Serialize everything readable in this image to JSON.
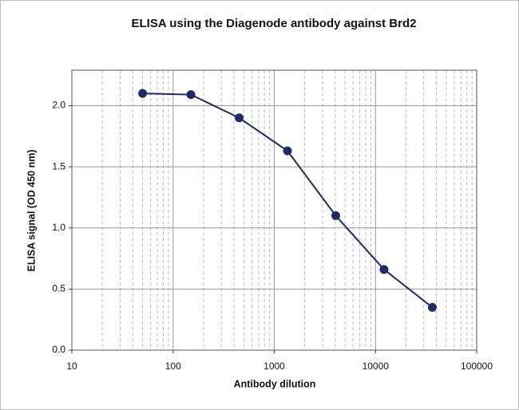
{
  "chart_data": {
    "type": "line",
    "title": "ELISA using the Diagenode antibody against Brd2",
    "x_label": "Antibody dilution",
    "y_label": "ELISA signal (OD 450 nm)",
    "x": [
      50,
      150,
      450,
      1350,
      4050,
      12150,
      36450
    ],
    "series": [
      {
        "color": "#1f2a6b",
        "values": [
          2.1,
          2.09,
          1.9,
          1.63,
          1.1,
          0.66,
          0.35
        ]
      }
    ],
    "xscale": "log",
    "xlim": [
      10,
      100000
    ],
    "xticks": [
      10,
      100,
      1000,
      10000,
      100000
    ],
    "ylim": [
      0,
      2.29
    ],
    "yticks": [
      {
        "value": 0,
        "label": "0.0"
      },
      {
        "value": 0.5,
        "label": "0.5"
      },
      {
        "value": 1,
        "label": "1.0"
      },
      {
        "value": 1.5,
        "label": "1.5"
      },
      {
        "value": 2,
        "label": "2.0"
      }
    ],
    "grid": true
  }
}
